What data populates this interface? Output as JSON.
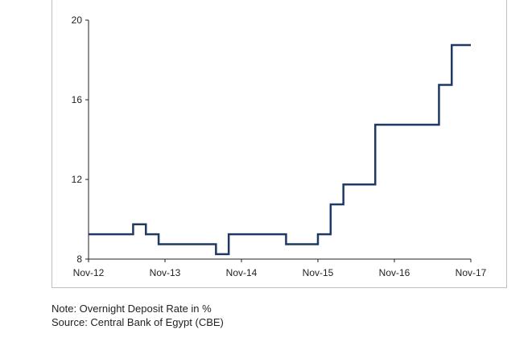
{
  "chart_data": {
    "type": "line",
    "step": true,
    "title": "",
    "xlabel": "",
    "ylabel": "",
    "x_ticks": [
      "Nov-12",
      "Nov-13",
      "Nov-14",
      "Nov-15",
      "Nov-16",
      "Nov-17"
    ],
    "y_ticks": [
      8,
      12,
      16,
      20
    ],
    "ylim": [
      8,
      20
    ],
    "xlim": [
      "2012-11",
      "2017-11"
    ],
    "grid": false,
    "legend": "none",
    "line_color": "#1f3864",
    "series": [
      {
        "x": [
          "2012-11",
          "2013-03",
          "2013-06",
          "2013-08",
          "2013-10",
          "2014-07",
          "2014-09",
          "2015-06",
          "2015-08",
          "2015-11",
          "2016-01",
          "2016-03",
          "2016-06",
          "2016-08",
          "2016-11",
          "2017-06",
          "2017-08",
          "2017-11"
        ],
        "values": [
          9.25,
          9.25,
          9.75,
          9.25,
          8.75,
          8.25,
          9.25,
          8.75,
          8.75,
          9.25,
          10.75,
          11.75,
          11.75,
          14.75,
          14.75,
          16.75,
          18.75,
          18.75
        ]
      }
    ]
  },
  "notes": {
    "note": "Note: Overnight Deposit Rate in %",
    "source": "Source: Central Bank of Egypt (CBE)"
  }
}
